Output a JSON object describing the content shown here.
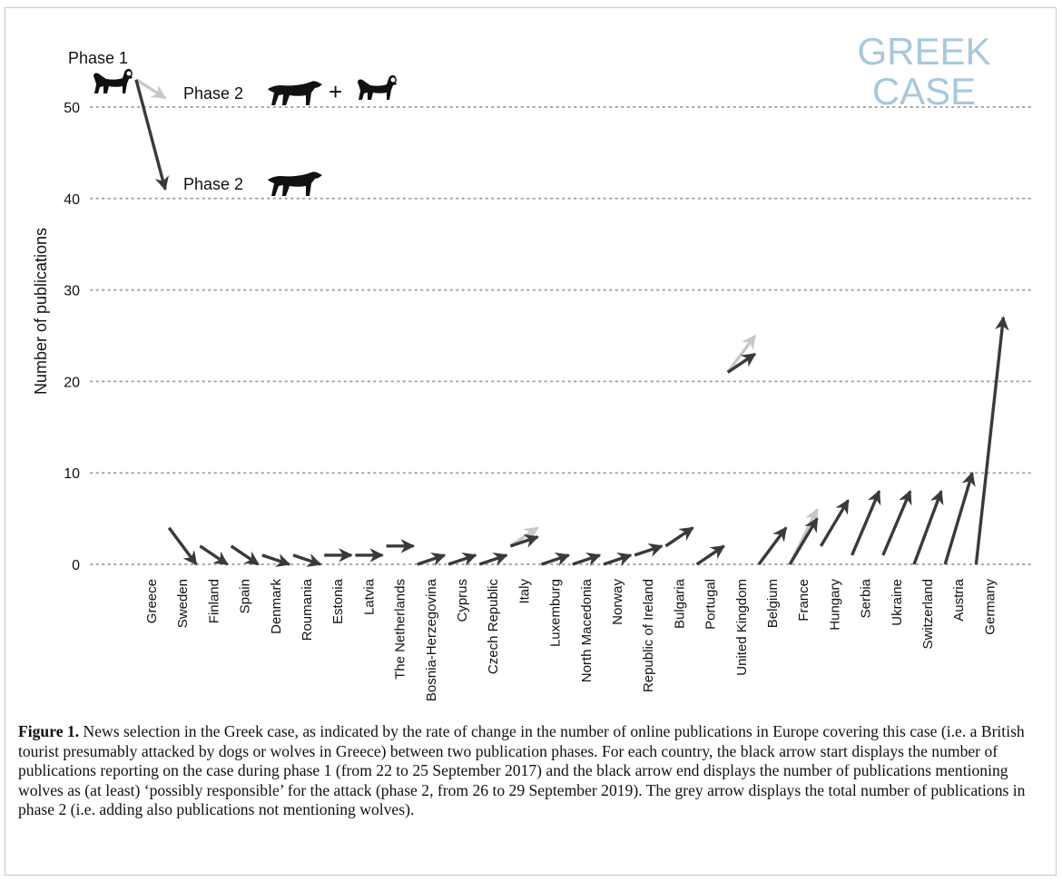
{
  "figure": {
    "caption_label": "Figure 1.",
    "caption_text": " News selection in the Greek case, as indicated by the rate of change in the number of online publications in Europe covering this case (i.e. a British tourist presumably attacked by dogs or wolves in Greece) between two publication phases. For each country, the black arrow start displays the number of publications reporting on the case during phase 1 (from 22 to 25 September 2017) and the black arrow end displays the number of publications mentioning wolves as (at least) ‘possibly responsible’ for the attack (phase 2, from 26 to 29 September 2019). The grey arrow displays the total number of publications in phase 2 (i.e. adding also publications not mentioning wolves)."
  },
  "chart_data": {
    "type": "arrow",
    "title_lines": [
      "GREEK",
      "CASE"
    ],
    "ylabel": "Number of publications",
    "ylim": [
      0,
      50
    ],
    "yticks": [
      0,
      10,
      20,
      30,
      40,
      50
    ],
    "grid": "horizontal dotted",
    "legend": {
      "phase1_label": "Phase 1",
      "phase2_total_label": "Phase 2",
      "phase2_wolves_label": "Phase 2",
      "plus": "+"
    },
    "categories": [
      "Greece",
      "Sweden",
      "Finland",
      "Spain",
      "Denmark",
      "Roumania",
      "Estonia",
      "Latvia",
      "The Netherlands",
      "Bosnia-Herzegovina",
      "Cyprus",
      "Czech Republic",
      "Italy",
      "Luxemburg",
      "North Macedonia",
      "Norway",
      "Republic of Ireland",
      "Bulgaria",
      "Portugal",
      "United Kingdom",
      "Belgium",
      "France",
      "Hungary",
      "Serbia",
      "Ukraine",
      "Switzerland",
      "Austria",
      "Germany"
    ],
    "phase1": [
      53,
      4,
      2,
      2,
      1,
      1,
      1,
      1,
      2,
      0,
      0,
      0,
      2,
      0,
      0,
      0,
      1,
      2,
      0,
      21,
      0,
      0,
      2,
      1,
      1,
      0,
      0,
      0
    ],
    "phase2_wolves": [
      41,
      0,
      0,
      0,
      0,
      0,
      1,
      1,
      2,
      1,
      1,
      1,
      3,
      1,
      1,
      1,
      2,
      4,
      2,
      23,
      4,
      5,
      7,
      8,
      8,
      8,
      10,
      27
    ],
    "phase2_total": [
      51,
      0,
      0,
      0,
      0,
      0,
      1,
      1,
      2,
      1,
      1,
      1,
      4,
      1,
      1,
      1,
      2,
      4,
      2,
      25,
      4,
      6,
      7,
      8,
      8,
      8,
      10,
      27
    ],
    "colors": {
      "black_arrow": "#3a3a3a",
      "grey_arrow": "#c8c8c8",
      "title": "#a8c8dc",
      "grid": "#a6a6a6"
    }
  }
}
